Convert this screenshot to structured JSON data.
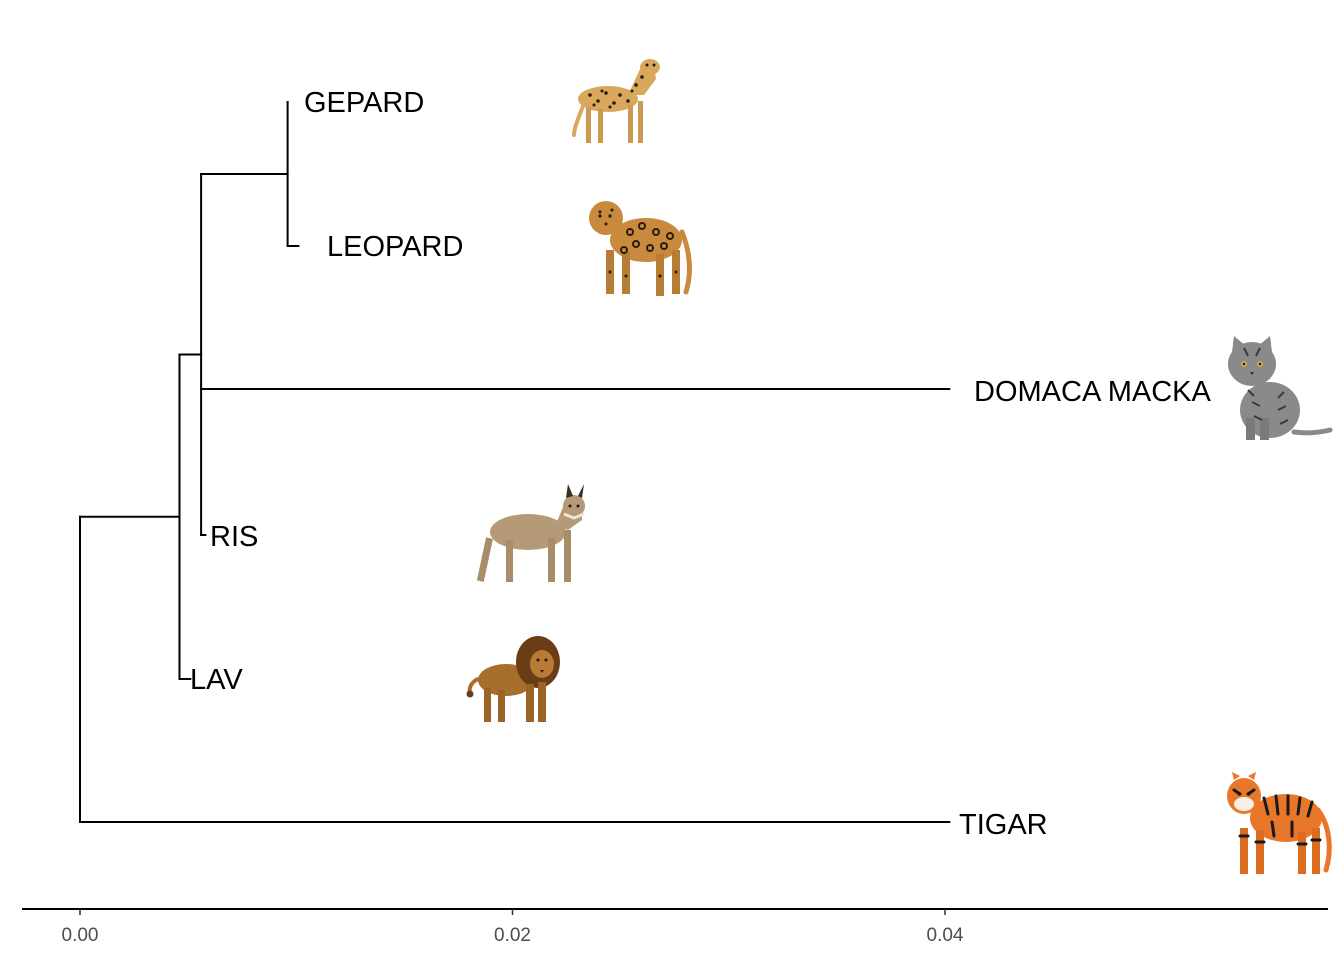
{
  "tree": {
    "tips": [
      {
        "id": "gepard",
        "label": "GEPARD",
        "distance": 0.0096,
        "animal_icon": "cheetah-icon"
      },
      {
        "id": "leopard",
        "label": "LEOPARD",
        "distance": 0.0101,
        "animal_icon": "leopard-icon"
      },
      {
        "id": "domaca-macka",
        "label": "DOMACA MACKA",
        "distance": 0.0402,
        "animal_icon": "domestic-cat-icon"
      },
      {
        "id": "ris",
        "label": "RIS",
        "distance": 0.0058,
        "animal_icon": "lynx-icon"
      },
      {
        "id": "lav",
        "label": "LAV",
        "distance": 0.0051,
        "animal_icon": "lion-icon"
      },
      {
        "id": "tigar",
        "label": "TIGAR",
        "distance": 0.0402,
        "animal_icon": "tiger-icon"
      }
    ],
    "internal_nodes": [
      {
        "id": "root",
        "distance": 0.0,
        "children": [
          "clade-lav",
          "tigar"
        ]
      },
      {
        "id": "clade-lav",
        "distance": 0.0046,
        "children": [
          "clade-ris",
          "lav"
        ]
      },
      {
        "id": "clade-ris",
        "distance": 0.0056,
        "children": [
          "clade-gepard",
          "domaca-macka",
          "ris"
        ]
      },
      {
        "id": "clade-gepard",
        "distance": 0.0096,
        "children": [
          "gepard",
          "leopard"
        ]
      }
    ]
  },
  "axis": {
    "range": [
      -0.0027,
      0.0576
    ],
    "ticks": [
      {
        "value": 0.0,
        "label": "0.00"
      },
      {
        "value": 0.02,
        "label": "0.02"
      },
      {
        "value": 0.04,
        "label": "0.04"
      }
    ]
  },
  "colors": {
    "branch": "#000000",
    "text": "#000000",
    "tick_text": "#4d4d4d",
    "cheetah_fur": "#d9a85c",
    "leopard_fur": "#c98a3e",
    "cat_fur": "#8a8a8a",
    "lynx_fur": "#b59a78",
    "lion_fur": "#a86f2c",
    "lion_mane": "#6b3d16",
    "tiger_fur": "#e8772a",
    "spot": "#2b1c10"
  }
}
